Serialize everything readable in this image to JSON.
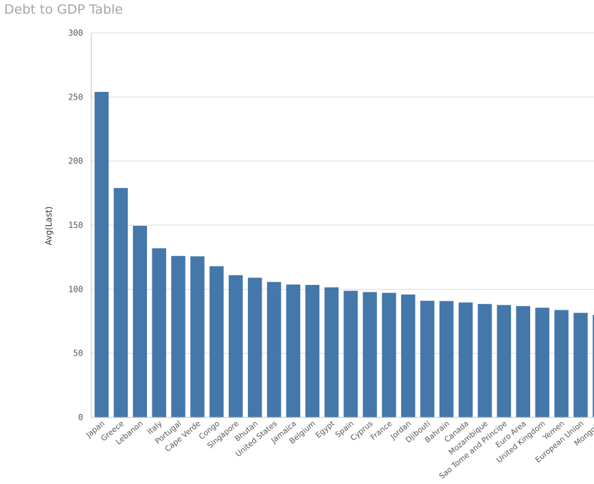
{
  "title": "Debt to GDP Table",
  "chart_data": {
    "type": "bar",
    "title": "Debt to GDP Table",
    "xlabel": "",
    "ylabel": "Avg(Last)",
    "ylim": [
      0,
      300
    ],
    "yticks": [
      0,
      50,
      100,
      150,
      200,
      250,
      300
    ],
    "grid": true,
    "bar_color": "#4477aa",
    "categories": [
      "Japan",
      "Greece",
      "Lebanon",
      "Italy",
      "Portugal",
      "Cape Verde",
      "Congo",
      "Singapore",
      "Bhutan",
      "United States",
      "Jamaica",
      "Belgium",
      "Egypt",
      "Spain",
      "Cyprus",
      "France",
      "Jordan",
      "Djibouti",
      "Bahrain",
      "Canada",
      "Mozambique",
      "Sao Tome and Principe",
      "Euro Area",
      "United Kingdom",
      "Yemen",
      "European Union",
      "Mongolia"
    ],
    "values": [
      254,
      179,
      149.5,
      132,
      126,
      125.7,
      118,
      111,
      109,
      105.7,
      103.7,
      103.4,
      101.5,
      98.8,
      97.8,
      97.2,
      95.9,
      91,
      90.8,
      89.7,
      88.5,
      87.7,
      86.9,
      85.6,
      83.8,
      81.6,
      80
    ]
  }
}
